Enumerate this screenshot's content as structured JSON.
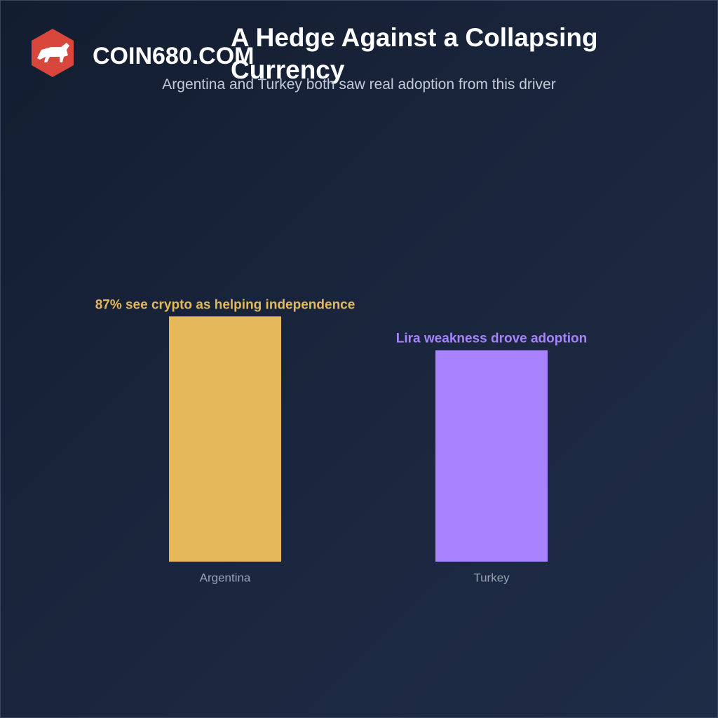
{
  "brand": "COIN680.COM",
  "chart_data": {
    "type": "bar",
    "title": "A Hedge Against a Collapsing Currency",
    "subtitle": "Argentina and Turkey both saw real adoption from this driver",
    "categories": [
      "Argentina",
      "Turkey"
    ],
    "values": [
      87,
      75
    ],
    "colors": [
      "#e4b85b",
      "#a882ff"
    ],
    "annotations": [
      "87% see crypto as helping independence",
      "Lira weakness drove adoption"
    ],
    "ylim": [
      0,
      100
    ]
  }
}
